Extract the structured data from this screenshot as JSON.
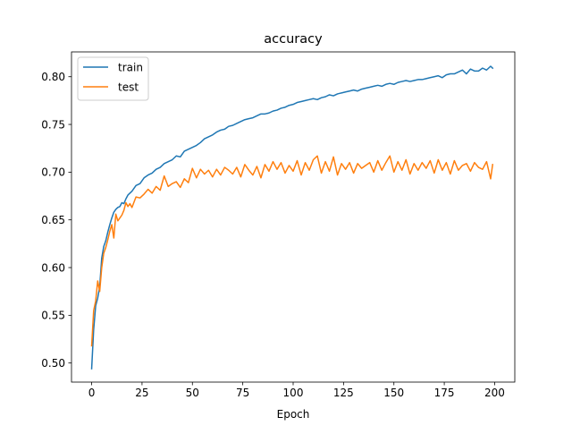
{
  "chart_data": {
    "type": "line",
    "title": "accuracy",
    "xlabel": "Epoch",
    "ylabel": "",
    "xlim": [
      -10,
      210
    ],
    "ylim": [
      0.48,
      0.826
    ],
    "xticks": [
      0,
      25,
      50,
      75,
      100,
      125,
      150,
      175,
      200
    ],
    "xtick_labels": [
      "0",
      "25",
      "50",
      "75",
      "100",
      "125",
      "150",
      "175",
      "200"
    ],
    "yticks": [
      0.5,
      0.55,
      0.6,
      0.65,
      0.7,
      0.75,
      0.8
    ],
    "ytick_labels": [
      "0.50",
      "0.55",
      "0.60",
      "0.65",
      "0.70",
      "0.75",
      "0.80"
    ],
    "grid": false,
    "legend_position": "top-left",
    "series": [
      {
        "name": "train",
        "color": "#1f77b4",
        "x": [
          0,
          1,
          2,
          3,
          4,
          5,
          6,
          7,
          8,
          9,
          10,
          11,
          12,
          13,
          14,
          15,
          16,
          17,
          18,
          19,
          20,
          22,
          24,
          26,
          28,
          30,
          32,
          34,
          36,
          38,
          40,
          42,
          44,
          46,
          48,
          50,
          52,
          54,
          56,
          58,
          60,
          62,
          64,
          66,
          68,
          70,
          72,
          74,
          76,
          78,
          80,
          82,
          84,
          86,
          88,
          90,
          92,
          94,
          96,
          98,
          100,
          102,
          104,
          106,
          108,
          110,
          112,
          114,
          116,
          118,
          120,
          122,
          124,
          126,
          128,
          130,
          132,
          134,
          136,
          138,
          140,
          142,
          144,
          146,
          148,
          150,
          152,
          154,
          156,
          158,
          160,
          162,
          164,
          166,
          168,
          170,
          172,
          174,
          176,
          178,
          180,
          182,
          184,
          186,
          188,
          190,
          192,
          194,
          196,
          198,
          199
        ],
        "values": [
          0.494,
          0.535,
          0.56,
          0.568,
          0.58,
          0.61,
          0.622,
          0.628,
          0.637,
          0.645,
          0.652,
          0.658,
          0.661,
          0.663,
          0.664,
          0.668,
          0.667,
          0.672,
          0.676,
          0.678,
          0.68,
          0.686,
          0.688,
          0.694,
          0.697,
          0.699,
          0.703,
          0.705,
          0.709,
          0.711,
          0.713,
          0.717,
          0.716,
          0.722,
          0.724,
          0.726,
          0.728,
          0.731,
          0.735,
          0.737,
          0.739,
          0.742,
          0.744,
          0.745,
          0.748,
          0.749,
          0.751,
          0.753,
          0.755,
          0.756,
          0.757,
          0.759,
          0.761,
          0.761,
          0.762,
          0.764,
          0.765,
          0.767,
          0.768,
          0.77,
          0.771,
          0.773,
          0.774,
          0.775,
          0.776,
          0.777,
          0.776,
          0.778,
          0.779,
          0.781,
          0.78,
          0.782,
          0.783,
          0.784,
          0.785,
          0.786,
          0.785,
          0.787,
          0.788,
          0.789,
          0.79,
          0.791,
          0.79,
          0.792,
          0.793,
          0.792,
          0.794,
          0.795,
          0.796,
          0.795,
          0.796,
          0.797,
          0.797,
          0.798,
          0.799,
          0.8,
          0.801,
          0.799,
          0.802,
          0.803,
          0.803,
          0.805,
          0.807,
          0.803,
          0.808,
          0.806,
          0.806,
          0.809,
          0.807,
          0.811,
          0.809
        ]
      },
      {
        "name": "test",
        "color": "#ff7f0e",
        "x": [
          0,
          1,
          2,
          3,
          4,
          5,
          6,
          7,
          8,
          9,
          10,
          11,
          12,
          13,
          14,
          15,
          16,
          17,
          18,
          19,
          20,
          22,
          24,
          26,
          28,
          30,
          32,
          34,
          36,
          38,
          40,
          42,
          44,
          46,
          48,
          50,
          52,
          54,
          56,
          58,
          60,
          62,
          64,
          66,
          68,
          70,
          72,
          74,
          76,
          78,
          80,
          82,
          84,
          86,
          88,
          90,
          92,
          94,
          96,
          98,
          100,
          102,
          104,
          106,
          108,
          110,
          112,
          114,
          116,
          118,
          120,
          122,
          124,
          126,
          128,
          130,
          132,
          134,
          136,
          138,
          140,
          142,
          144,
          146,
          148,
          150,
          152,
          154,
          156,
          158,
          160,
          162,
          164,
          166,
          168,
          170,
          172,
          174,
          176,
          178,
          180,
          182,
          184,
          186,
          188,
          190,
          192,
          194,
          196,
          198,
          199
        ],
        "values": [
          0.518,
          0.555,
          0.565,
          0.586,
          0.575,
          0.6,
          0.615,
          0.621,
          0.629,
          0.638,
          0.645,
          0.631,
          0.656,
          0.649,
          0.652,
          0.655,
          0.66,
          0.668,
          0.664,
          0.667,
          0.663,
          0.674,
          0.673,
          0.677,
          0.682,
          0.678,
          0.685,
          0.681,
          0.696,
          0.685,
          0.688,
          0.69,
          0.684,
          0.693,
          0.689,
          0.704,
          0.694,
          0.703,
          0.698,
          0.702,
          0.695,
          0.703,
          0.697,
          0.705,
          0.702,
          0.698,
          0.705,
          0.695,
          0.708,
          0.702,
          0.697,
          0.706,
          0.694,
          0.708,
          0.701,
          0.711,
          0.703,
          0.71,
          0.699,
          0.707,
          0.701,
          0.712,
          0.697,
          0.71,
          0.702,
          0.713,
          0.717,
          0.699,
          0.711,
          0.701,
          0.716,
          0.697,
          0.709,
          0.703,
          0.71,
          0.699,
          0.709,
          0.704,
          0.707,
          0.71,
          0.7,
          0.712,
          0.702,
          0.71,
          0.717,
          0.7,
          0.711,
          0.702,
          0.713,
          0.698,
          0.709,
          0.702,
          0.71,
          0.704,
          0.712,
          0.699,
          0.713,
          0.702,
          0.71,
          0.698,
          0.712,
          0.702,
          0.707,
          0.709,
          0.701,
          0.71,
          0.705,
          0.703,
          0.711,
          0.693,
          0.708
        ]
      }
    ]
  }
}
